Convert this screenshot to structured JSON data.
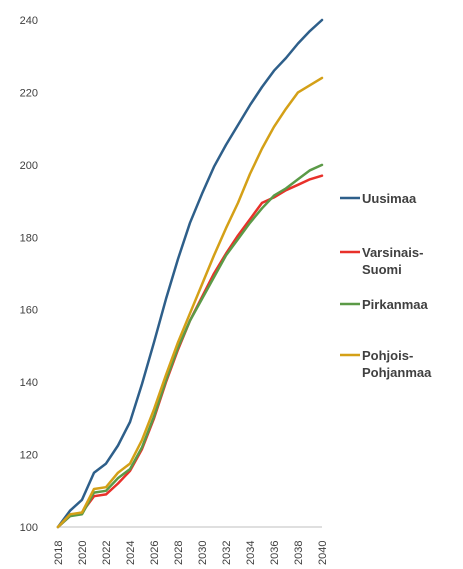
{
  "chart_data": {
    "type": "line",
    "title": "",
    "xlabel": "",
    "ylabel": "",
    "x": [
      2018,
      2019,
      2020,
      2021,
      2022,
      2023,
      2024,
      2025,
      2026,
      2027,
      2028,
      2029,
      2030,
      2031,
      2032,
      2033,
      2034,
      2035,
      2036,
      2037,
      2038,
      2039,
      2040
    ],
    "xticks": [
      "2018",
      "2020",
      "2022",
      "2024",
      "2026",
      "2028",
      "2030",
      "2032",
      "2034",
      "2036",
      "2038",
      "2040"
    ],
    "yticks": [
      "100",
      "120",
      "140",
      "160",
      "180",
      "200",
      "220",
      "240"
    ],
    "ylim": [
      100,
      240
    ],
    "grid": false,
    "legend_position": "right",
    "series": [
      {
        "name": "Uusimaa",
        "legend_lines": [
          "Uusimaa"
        ],
        "color": "#2E5F8A",
        "values": [
          100,
          104.5,
          107.5,
          115,
          117.5,
          122.5,
          129,
          139.5,
          151,
          163,
          174,
          184,
          192,
          199.5,
          205.5,
          211,
          216.5,
          221.5,
          226,
          229.5,
          233.5,
          237,
          240
        ]
      },
      {
        "name": "Varsinais-Suomi",
        "legend_lines": [
          "Varsinais-",
          "Suomi"
        ],
        "color": "#E8312A",
        "values": [
          100,
          103,
          104,
          108.5,
          109,
          112,
          115.5,
          121.5,
          130,
          140,
          149,
          157,
          163.5,
          170,
          175.5,
          180.5,
          185,
          189.5,
          191,
          193,
          194.5,
          196,
          197
        ]
      },
      {
        "name": "Pirkanmaa",
        "legend_lines": [
          "Pirkanmaa"
        ],
        "color": "#5B9A47",
        "values": [
          100,
          103,
          103.5,
          109.5,
          110,
          113.5,
          116,
          122,
          130.5,
          140.5,
          149.5,
          157,
          163,
          169,
          175,
          179.5,
          184,
          188,
          191.5,
          193.5,
          196,
          198.5,
          200
        ]
      },
      {
        "name": "Pohjois-Pohjanmaa",
        "legend_lines": [
          "Pohjois-",
          "Pohjanmaa"
        ],
        "color": "#D4A017",
        "values": [
          100,
          103.5,
          104,
          110.5,
          111,
          115,
          117.5,
          124,
          132.5,
          142,
          151,
          159,
          167,
          175,
          182.5,
          189.5,
          197.5,
          204.5,
          210.5,
          215.5,
          220,
          222,
          224
        ]
      }
    ]
  }
}
